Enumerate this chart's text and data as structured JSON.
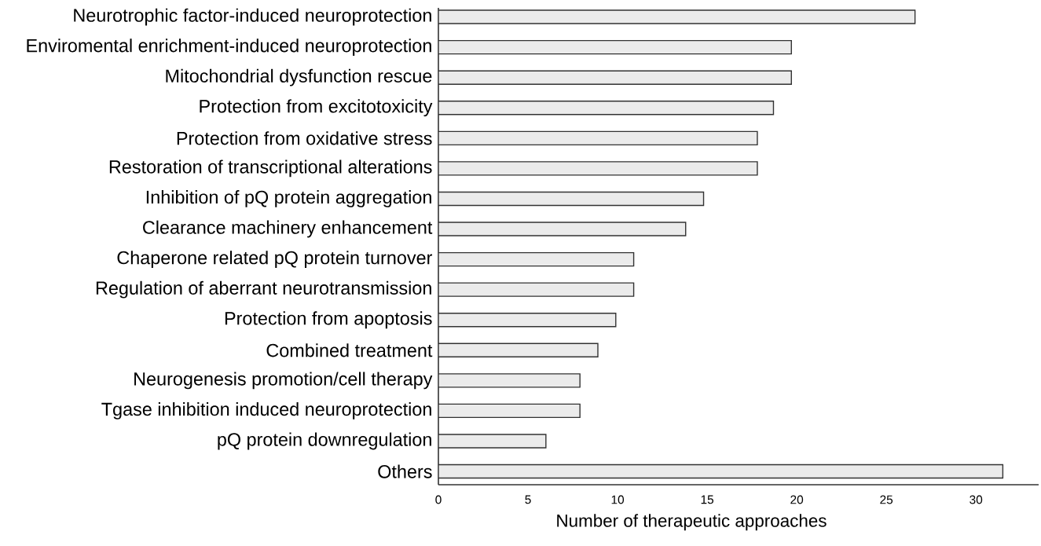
{
  "chart_data": {
    "type": "bar",
    "orientation": "horizontal",
    "xlabel": "Number of therapeutic approaches",
    "categories": [
      "Neurotrophic factor-induced neuroprotection",
      "Enviromental enrichment-induced neuroprotection",
      "Mitochondrial dysfunction rescue",
      "Protection from excitotoxicity",
      "Protection from oxidative stress",
      "Restoration of transcriptional alterations",
      "Inhibition of pQ protein aggregation",
      "Clearance machinery enhancement",
      "Chaperone related pQ protein turnover",
      "Regulation of aberrant neurotransmission",
      "Protection from apoptosis",
      "Combined treatment",
      "Neurogenesis promotion/cell therapy",
      "Tgase inhibition induced neuroprotection",
      "pQ protein downregulation",
      "Others"
    ],
    "values": [
      26.6,
      19.7,
      19.7,
      18.7,
      17.8,
      17.8,
      14.8,
      13.8,
      10.9,
      10.9,
      9.9,
      8.9,
      7.9,
      7.9,
      6,
      31.5
    ],
    "color": "#ebebeb",
    "xlim": [
      0,
      33.5
    ],
    "xticks": [
      0,
      5,
      10,
      15,
      20,
      25,
      30
    ]
  }
}
